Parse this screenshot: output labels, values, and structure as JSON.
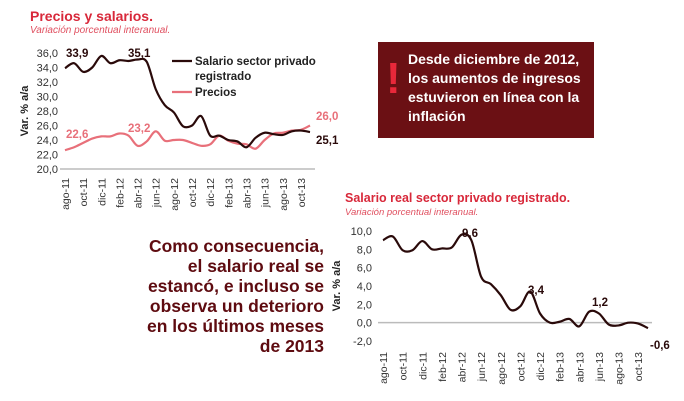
{
  "message_box": {
    "icon": "exclamation-icon",
    "text": "Desde diciembre de 2012, los aumentos de ingresos estuvieron en línea con la inflación"
  },
  "conclusion": [
    "Como consecuencia,",
    "el salario real se",
    "estancó, e incluso se",
    "observa un deterioro",
    "en los últimos meses",
    "de 2013"
  ],
  "colors": {
    "salary": "#2a0a0a",
    "prices": "#e8707a",
    "title": "#d8283a",
    "box": "#6b1014"
  },
  "chart_data": [
    {
      "type": "line",
      "title": "Precios y salarios.",
      "subtitle": "Variación porcentual interanual.",
      "ylabel": "Var. % a/a",
      "ylim": [
        20,
        36
      ],
      "yticks": [
        "20,0",
        "22,0",
        "24,0",
        "26,0",
        "28,0",
        "30,0",
        "32,0",
        "34,0",
        "36,0"
      ],
      "xticks": [
        "ago-11",
        "oct-11",
        "dic-11",
        "feb-12",
        "abr-12",
        "jun-12",
        "ago-12",
        "oct-12",
        "dic-12",
        "feb-13",
        "abr-13",
        "jun-13",
        "ago-13",
        "oct-13"
      ],
      "x": [
        "ago-11",
        "sep-11",
        "oct-11",
        "nov-11",
        "dic-11",
        "ene-12",
        "feb-12",
        "mar-12",
        "abr-12",
        "may-12",
        "jun-12",
        "jul-12",
        "ago-12",
        "sep-12",
        "oct-12",
        "nov-12",
        "dic-12",
        "ene-13",
        "feb-13",
        "mar-13",
        "abr-13",
        "may-13",
        "jun-13",
        "jul-13",
        "ago-13",
        "sep-13",
        "oct-13",
        "nov-13"
      ],
      "legend": "top-right",
      "series": [
        {
          "name": "Salario sector privado registrado",
          "color": "#2a0a0a",
          "values": [
            33.9,
            34.6,
            33.4,
            34.0,
            35.6,
            34.6,
            35.0,
            34.9,
            35.1,
            34.8,
            31.0,
            28.8,
            27.8,
            25.9,
            26.0,
            27.3,
            24.6,
            24.6,
            24.0,
            23.8,
            23.0,
            24.3,
            25.0,
            24.8,
            24.7,
            25.2,
            25.3,
            25.1
          ]
        },
        {
          "name": "Precios",
          "color": "#e8707a",
          "values": [
            22.6,
            23.0,
            23.6,
            24.2,
            24.5,
            24.5,
            24.9,
            24.6,
            23.2,
            23.8,
            25.2,
            23.9,
            24.0,
            24.0,
            23.6,
            23.2,
            23.4,
            24.6,
            23.9,
            23.5,
            23.4,
            22.8,
            24.0,
            24.9,
            25.0,
            25.3,
            25.4,
            26.0
          ]
        }
      ],
      "annotations": [
        {
          "text": "33,9",
          "x": "ago-11",
          "series": 0
        },
        {
          "text": "35,1",
          "x": "abr-12",
          "series": 0
        },
        {
          "text": "25,1",
          "x": "nov-13",
          "series": 0
        },
        {
          "text": "22,6",
          "x": "ago-11",
          "series": 1
        },
        {
          "text": "23,2",
          "x": "abr-12",
          "series": 1
        },
        {
          "text": "26,0",
          "x": "nov-13",
          "series": 1
        }
      ]
    },
    {
      "type": "line",
      "title": "Salario real sector privado registrado.",
      "subtitle": "Variación porcentual interanual.",
      "ylabel": "Var. % a/a",
      "ylim": [
        -2,
        10
      ],
      "yticks": [
        "-2,0",
        "0,0",
        "2,0",
        "4,0",
        "6,0",
        "8,0",
        "10,0"
      ],
      "xticks": [
        "ago-11",
        "oct-11",
        "dic-11",
        "feb-12",
        "abr-12",
        "jun-12",
        "ago-12",
        "oct-12",
        "dic-12",
        "feb-13",
        "abr-13",
        "jun-13",
        "ago-13",
        "oct-13"
      ],
      "series": [
        {
          "color": "#2a0a0a",
          "values": [
            9.0,
            9.4,
            7.9,
            7.9,
            8.9,
            8.0,
            8.1,
            8.2,
            9.6,
            9.0,
            5.0,
            4.2,
            3.0,
            1.4,
            1.8,
            3.4,
            1.0,
            0.0,
            0.1,
            0.4,
            -0.4,
            1.2,
            1.0,
            -0.2,
            -0.3,
            0.0,
            -0.1,
            -0.6
          ]
        }
      ],
      "annotations": [
        {
          "text": "9,6",
          "x": "abr-12"
        },
        {
          "text": "3,4",
          "x": "nov-12"
        },
        {
          "text": "1,2",
          "x": "may-13"
        },
        {
          "text": "-0,6",
          "x": "nov-13"
        }
      ]
    }
  ]
}
